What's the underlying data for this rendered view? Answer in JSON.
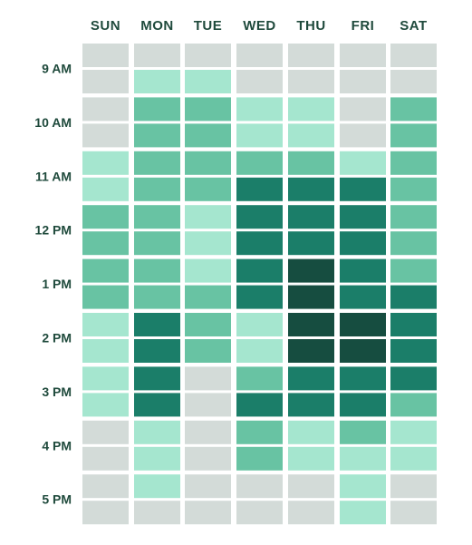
{
  "chart_data": {
    "type": "heatmap",
    "title": "",
    "days": [
      "SUN",
      "MON",
      "TUE",
      "WED",
      "THU",
      "FRI",
      "SAT"
    ],
    "hour_labels": [
      "9 AM",
      "10 AM",
      "11 AM",
      "12 PM",
      "1 PM",
      "2 PM",
      "3 PM",
      "4 PM",
      "5 PM"
    ],
    "rows_per_hour": 2,
    "levels": [
      [
        0,
        0,
        0,
        0,
        0,
        0,
        0
      ],
      [
        0,
        1,
        1,
        0,
        0,
        0,
        0
      ],
      [
        0,
        2,
        2,
        1,
        1,
        0,
        2
      ],
      [
        0,
        2,
        2,
        1,
        1,
        0,
        2
      ],
      [
        1,
        2,
        2,
        2,
        2,
        1,
        2
      ],
      [
        1,
        2,
        2,
        3,
        3,
        3,
        2
      ],
      [
        2,
        2,
        1,
        3,
        3,
        3,
        2
      ],
      [
        2,
        2,
        1,
        3,
        3,
        3,
        2
      ],
      [
        2,
        2,
        1,
        3,
        4,
        3,
        2
      ],
      [
        2,
        2,
        2,
        3,
        4,
        3,
        3
      ],
      [
        1,
        3,
        2,
        1,
        4,
        4,
        3
      ],
      [
        1,
        3,
        2,
        1,
        4,
        4,
        3
      ],
      [
        1,
        3,
        0,
        2,
        3,
        3,
        3
      ],
      [
        1,
        3,
        0,
        3,
        3,
        3,
        2
      ],
      [
        0,
        1,
        0,
        2,
        1,
        2,
        1
      ],
      [
        0,
        1,
        0,
        2,
        1,
        1,
        1
      ],
      [
        0,
        1,
        0,
        0,
        0,
        1,
        0
      ],
      [
        0,
        0,
        0,
        0,
        0,
        1,
        0
      ]
    ],
    "level_colors": [
      "#d3dbd8",
      "#a5e6cf",
      "#68c3a3",
      "#1b7e69",
      "#164d40"
    ]
  }
}
